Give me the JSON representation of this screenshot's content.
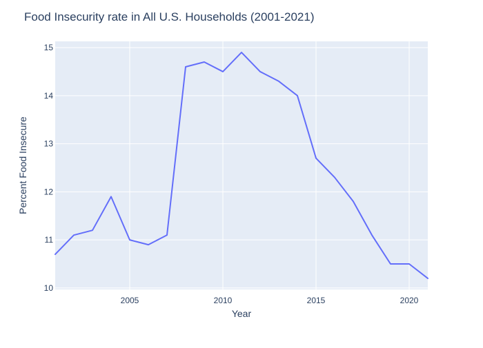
{
  "chart_data": {
    "type": "line",
    "title": "Food Insecurity rate in All U.S. Households (2001-2021)",
    "xlabel": "Year",
    "ylabel": "Percent Food Insecure",
    "x": [
      2001,
      2002,
      2003,
      2004,
      2005,
      2006,
      2007,
      2008,
      2009,
      2010,
      2011,
      2012,
      2013,
      2014,
      2015,
      2016,
      2017,
      2018,
      2019,
      2020,
      2021
    ],
    "series": [
      {
        "values": [
          10.7,
          11.1,
          11.2,
          11.9,
          11.0,
          10.9,
          11.1,
          14.6,
          14.7,
          14.5,
          14.9,
          14.5,
          14.3,
          14.0,
          12.7,
          12.3,
          11.8,
          11.1,
          10.5,
          10.5,
          10.2
        ],
        "color": "#636efa"
      }
    ],
    "xlim": [
      2001,
      2021
    ],
    "ylim": [
      9.97,
      15.13
    ],
    "xticks": [
      2005,
      2010,
      2015,
      2020
    ],
    "yticks": [
      10,
      11,
      12,
      13,
      14,
      15
    ],
    "grid": true,
    "colors": {
      "plot_background": "#e5ecf6",
      "grid": "#ffffff",
      "text": "#2a3f5f",
      "title": "#2a3f5f"
    }
  }
}
